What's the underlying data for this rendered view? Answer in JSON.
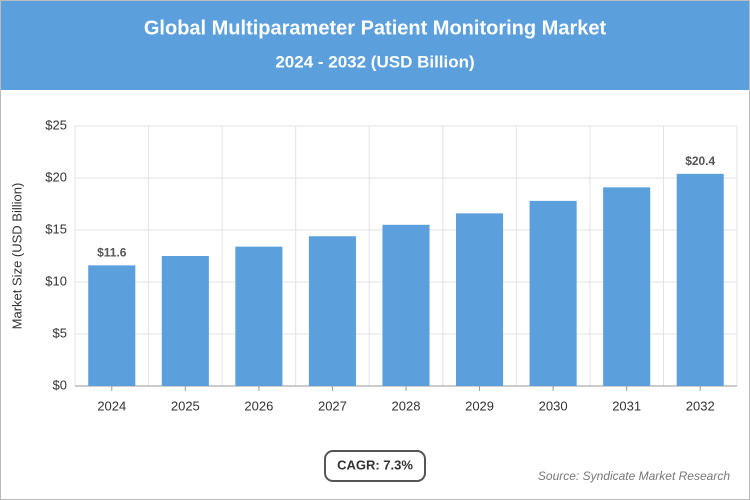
{
  "chart_data": {
    "type": "bar",
    "title": "Global Multiparameter Patient Monitoring Market",
    "subtitle": "2024 - 2032 (USD Billion)",
    "y_label": "Market Size (USD Billion)",
    "categories": [
      "2024",
      "2025",
      "2026",
      "2027",
      "2028",
      "2029",
      "2030",
      "2031",
      "2032"
    ],
    "values": [
      11.6,
      12.5,
      13.4,
      14.4,
      15.5,
      16.6,
      17.8,
      19.1,
      20.4
    ],
    "value_labels": [
      "$11.6",
      null,
      null,
      null,
      null,
      null,
      null,
      null,
      "$20.4"
    ],
    "color": "#5b9fdd",
    "ylim": [
      0,
      25
    ],
    "yticks": [
      {
        "value": 0,
        "label": "$0"
      },
      {
        "value": 5,
        "label": "$5"
      },
      {
        "value": 10,
        "label": "$10"
      },
      {
        "value": 15,
        "label": "$15"
      },
      {
        "value": 20,
        "label": "$20"
      },
      {
        "value": 25,
        "label": "$25"
      }
    ],
    "grid": true,
    "cagr": "CAGR: 7.3%",
    "source": "Source: Syndicate Market Research"
  }
}
